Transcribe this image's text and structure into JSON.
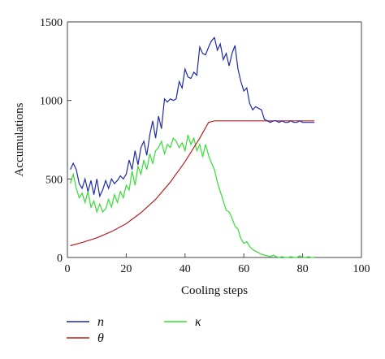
{
  "chart_data": {
    "type": "line",
    "title": "",
    "xlabel": "Cooling steps",
    "ylabel": "Accumulations",
    "xlim": [
      0,
      100
    ],
    "ylim": [
      0,
      1500
    ],
    "xticks": [
      0,
      20,
      40,
      60,
      80,
      100
    ],
    "yticks": [
      0,
      500,
      1000,
      1500
    ],
    "grid": false,
    "legend_position": "below",
    "series": [
      {
        "name": "n",
        "color": "#1f2aa8",
        "x": [
          1,
          2,
          3,
          4,
          5,
          6,
          7,
          8,
          9,
          10,
          11,
          12,
          13,
          14,
          15,
          16,
          17,
          18,
          19,
          20,
          21,
          22,
          23,
          24,
          25,
          26,
          27,
          28,
          29,
          30,
          31,
          32,
          33,
          34,
          35,
          36,
          37,
          38,
          39,
          40,
          41,
          42,
          43,
          44,
          45,
          46,
          47,
          48,
          49,
          50,
          51,
          52,
          53,
          54,
          55,
          56,
          57,
          58,
          59,
          60,
          61,
          62,
          63,
          64,
          65,
          66,
          67,
          68,
          69,
          70,
          71,
          72,
          73,
          74,
          75,
          76,
          77,
          78,
          79,
          80,
          81,
          82,
          83,
          84
        ],
        "y": [
          560,
          600,
          560,
          470,
          440,
          500,
          420,
          490,
          400,
          500,
          390,
          430,
          490,
          440,
          500,
          470,
          490,
          520,
          500,
          530,
          620,
          560,
          680,
          590,
          700,
          740,
          650,
          780,
          870,
          760,
          900,
          820,
          1010,
          990,
          1010,
          1000,
          1010,
          1120,
          1080,
          1200,
          1150,
          1140,
          1180,
          1160,
          1340,
          1300,
          1290,
          1340,
          1380,
          1400,
          1320,
          1360,
          1260,
          1300,
          1220,
          1300,
          1350,
          1200,
          1120,
          1060,
          1080,
          980,
          940,
          960,
          950,
          940,
          880,
          870,
          860,
          870,
          870,
          860,
          870,
          860,
          860,
          870,
          860,
          860,
          870,
          860,
          860,
          860,
          860,
          860
        ],
        "x_sparse_note": ""
      },
      {
        "name": "θ",
        "color": "#b22222",
        "x": [
          1,
          5,
          10,
          15,
          20,
          25,
          30,
          35,
          40,
          45,
          48,
          50,
          52,
          60,
          70,
          80,
          84
        ],
        "y": [
          75,
          95,
          125,
          165,
          215,
          285,
          370,
          480,
          610,
          760,
          860,
          870,
          870,
          870,
          870,
          870,
          870
        ]
      },
      {
        "name": "κ",
        "color": "#33dd33",
        "x": [
          1,
          2,
          3,
          4,
          5,
          6,
          7,
          8,
          9,
          10,
          11,
          12,
          13,
          14,
          15,
          16,
          17,
          18,
          19,
          20,
          21,
          22,
          23,
          24,
          25,
          26,
          27,
          28,
          29,
          30,
          31,
          32,
          33,
          34,
          35,
          36,
          37,
          38,
          39,
          40,
          41,
          42,
          43,
          44,
          45,
          46,
          47,
          48,
          49,
          50,
          51,
          52,
          53,
          54,
          55,
          56,
          57,
          58,
          59,
          60,
          61,
          62,
          63,
          64,
          65,
          66,
          67,
          68,
          69,
          70,
          71,
          72,
          73,
          74,
          75,
          76,
          77,
          78,
          79,
          80,
          81,
          82,
          83,
          84
        ],
        "y": [
          470,
          530,
          440,
          380,
          410,
          350,
          420,
          320,
          360,
          290,
          340,
          290,
          310,
          370,
          320,
          400,
          350,
          420,
          380,
          460,
          430,
          550,
          460,
          580,
          530,
          620,
          560,
          660,
          600,
          680,
          700,
          740,
          660,
          720,
          700,
          760,
          740,
          700,
          730,
          680,
          780,
          720,
          760,
          680,
          720,
          640,
          720,
          650,
          600,
          560,
          480,
          420,
          360,
          300,
          290,
          250,
          200,
          180,
          120,
          90,
          100,
          70,
          50,
          40,
          30,
          20,
          15,
          10,
          5,
          15,
          5,
          0,
          5,
          0,
          0,
          5,
          0,
          0,
          10,
          0,
          0,
          5,
          0,
          0
        ]
      }
    ]
  }
}
